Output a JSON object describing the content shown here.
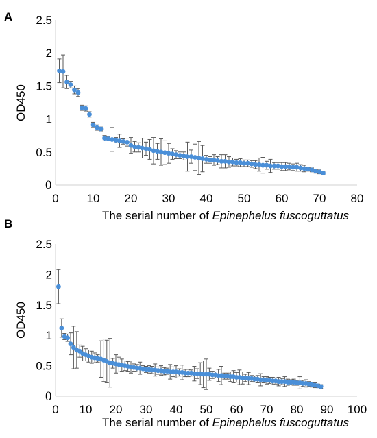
{
  "panels": [
    {
      "letter": "A"
    },
    {
      "letter": "B"
    }
  ],
  "chart_data": [
    {
      "type": "scatter",
      "panel": "A",
      "title": "",
      "xlabel_prefix": "The serial number of ",
      "xlabel_species": "Epinephelus fuscoguttatus",
      "ylabel": "OD450",
      "xlim": [
        0,
        80
      ],
      "ylim": [
        0,
        2.5
      ],
      "x_ticks": [
        "0",
        "10",
        "20",
        "30",
        "40",
        "50",
        "60",
        "70",
        "80"
      ],
      "y_ticks": [
        "0",
        "0.5",
        "1",
        "1.5",
        "2",
        "2.5"
      ],
      "marker_color": "#4a8fd8",
      "errorbar_color": "#5a5a5a",
      "x": [
        1,
        2,
        3,
        4,
        5,
        6,
        7,
        8,
        9,
        10,
        11,
        12,
        13,
        14,
        15,
        16,
        17,
        18,
        19,
        20,
        21,
        22,
        23,
        24,
        25,
        26,
        27,
        28,
        29,
        30,
        31,
        32,
        33,
        34,
        35,
        36,
        37,
        38,
        39,
        40,
        41,
        42,
        43,
        44,
        45,
        46,
        47,
        48,
        49,
        50,
        51,
        52,
        53,
        54,
        55,
        56,
        57,
        58,
        59,
        60,
        61,
        62,
        63,
        64,
        65,
        66,
        67,
        68,
        69,
        70,
        71
      ],
      "y": [
        1.73,
        1.72,
        1.56,
        1.52,
        1.44,
        1.4,
        1.17,
        1.16,
        1.07,
        0.91,
        0.87,
        0.85,
        0.71,
        0.7,
        0.69,
        0.68,
        0.67,
        0.66,
        0.65,
        0.6,
        0.58,
        0.57,
        0.56,
        0.55,
        0.54,
        0.52,
        0.51,
        0.5,
        0.49,
        0.48,
        0.47,
        0.46,
        0.45,
        0.44,
        0.43,
        0.43,
        0.42,
        0.41,
        0.4,
        0.39,
        0.38,
        0.38,
        0.37,
        0.36,
        0.36,
        0.35,
        0.35,
        0.34,
        0.34,
        0.33,
        0.33,
        0.32,
        0.31,
        0.31,
        0.3,
        0.3,
        0.29,
        0.29,
        0.29,
        0.28,
        0.28,
        0.28,
        0.27,
        0.27,
        0.26,
        0.25,
        0.24,
        0.23,
        0.21,
        0.2,
        0.18
      ],
      "error": [
        0.18,
        0.25,
        0.1,
        0.05,
        0.06,
        0.06,
        0.04,
        0.04,
        0.04,
        0.04,
        0.04,
        0.03,
        0.04,
        0.03,
        0.18,
        0.04,
        0.1,
        0.04,
        0.06,
        0.12,
        0.08,
        0.07,
        0.15,
        0.1,
        0.15,
        0.2,
        0.12,
        0.2,
        0.18,
        0.15,
        0.08,
        0.06,
        0.05,
        0.06,
        0.22,
        0.1,
        0.2,
        0.25,
        0.2,
        0.06,
        0.05,
        0.08,
        0.06,
        0.1,
        0.1,
        0.08,
        0.06,
        0.05,
        0.06,
        0.05,
        0.05,
        0.05,
        0.06,
        0.1,
        0.12,
        0.06,
        0.1,
        0.05,
        0.05,
        0.06,
        0.06,
        0.05,
        0.05,
        0.06,
        0.05,
        0.05,
        0.03,
        0.03,
        0.03,
        0.03,
        0.02
      ]
    },
    {
      "type": "scatter",
      "panel": "B",
      "title": "",
      "xlabel_prefix": "The serial number of ",
      "xlabel_species": "Epinephelus fuscoguttatus",
      "ylabel": "OD450",
      "xlim": [
        0,
        100
      ],
      "ylim": [
        0,
        2.5
      ],
      "x_ticks": [
        "0",
        "10",
        "20",
        "30",
        "40",
        "50",
        "60",
        "70",
        "80",
        "90",
        "100"
      ],
      "y_ticks": [
        "0",
        "0.5",
        "1",
        "1.5",
        "2",
        "2.5"
      ],
      "marker_color": "#4a8fd8",
      "errorbar_color": "#5a5a5a",
      "x": [
        1,
        2,
        3,
        4,
        5,
        6,
        7,
        8,
        9,
        10,
        11,
        12,
        13,
        14,
        15,
        16,
        17,
        18,
        19,
        20,
        21,
        22,
        23,
        24,
        25,
        26,
        27,
        28,
        29,
        30,
        31,
        32,
        33,
        34,
        35,
        36,
        37,
        38,
        39,
        40,
        41,
        42,
        43,
        44,
        45,
        46,
        47,
        48,
        49,
        50,
        51,
        52,
        53,
        54,
        55,
        56,
        57,
        58,
        59,
        60,
        61,
        62,
        63,
        64,
        65,
        66,
        67,
        68,
        69,
        70,
        71,
        72,
        73,
        74,
        75,
        76,
        77,
        78,
        79,
        80,
        81,
        82,
        83,
        84,
        85,
        86,
        87,
        88
      ],
      "y": [
        1.8,
        1.12,
        0.98,
        0.96,
        0.86,
        0.8,
        0.76,
        0.74,
        0.7,
        0.68,
        0.66,
        0.64,
        0.63,
        0.62,
        0.61,
        0.59,
        0.57,
        0.55,
        0.54,
        0.53,
        0.52,
        0.51,
        0.5,
        0.49,
        0.48,
        0.47,
        0.46,
        0.46,
        0.45,
        0.44,
        0.44,
        0.43,
        0.43,
        0.42,
        0.42,
        0.41,
        0.41,
        0.4,
        0.4,
        0.4,
        0.39,
        0.39,
        0.38,
        0.38,
        0.38,
        0.37,
        0.37,
        0.37,
        0.36,
        0.36,
        0.36,
        0.35,
        0.35,
        0.34,
        0.34,
        0.33,
        0.33,
        0.32,
        0.32,
        0.31,
        0.31,
        0.3,
        0.3,
        0.29,
        0.29,
        0.28,
        0.28,
        0.27,
        0.27,
        0.26,
        0.26,
        0.25,
        0.25,
        0.24,
        0.24,
        0.24,
        0.23,
        0.23,
        0.23,
        0.22,
        0.22,
        0.21,
        0.21,
        0.2,
        0.19,
        0.18,
        0.17,
        0.16
      ],
      "error": [
        0.28,
        0.15,
        0.05,
        0.06,
        0.18,
        0.35,
        0.3,
        0.1,
        0.12,
        0.1,
        0.1,
        0.1,
        0.08,
        0.06,
        0.3,
        0.35,
        0.35,
        0.4,
        0.08,
        0.15,
        0.12,
        0.1,
        0.08,
        0.08,
        0.1,
        0.06,
        0.06,
        0.1,
        0.05,
        0.05,
        0.06,
        0.06,
        0.1,
        0.06,
        0.08,
        0.06,
        0.05,
        0.12,
        0.08,
        0.1,
        0.06,
        0.12,
        0.06,
        0.06,
        0.05,
        0.12,
        0.08,
        0.18,
        0.22,
        0.25,
        0.1,
        0.06,
        0.05,
        0.1,
        0.15,
        0.05,
        0.05,
        0.08,
        0.1,
        0.08,
        0.12,
        0.1,
        0.06,
        0.1,
        0.05,
        0.05,
        0.06,
        0.1,
        0.05,
        0.06,
        0.05,
        0.06,
        0.05,
        0.07,
        0.05,
        0.08,
        0.05,
        0.04,
        0.05,
        0.04,
        0.1,
        0.05,
        0.06,
        0.04,
        0.04,
        0.04,
        0.03,
        0.03
      ]
    }
  ]
}
